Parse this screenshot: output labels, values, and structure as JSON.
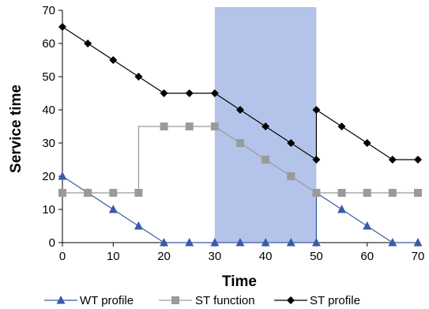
{
  "chart_data": {
    "type": "line",
    "title": "",
    "xlabel": "Time",
    "ylabel": "Service time",
    "xlim": [
      0,
      70
    ],
    "ylim": [
      0,
      70
    ],
    "xticks": [
      0,
      10,
      20,
      30,
      40,
      50,
      60,
      70
    ],
    "yticks": [
      0,
      10,
      20,
      30,
      40,
      50,
      60,
      70
    ],
    "grid": false,
    "legend_position": "bottom",
    "highlight_region": {
      "x_start": 30,
      "x_end": 50,
      "color": "#b4c3ea"
    },
    "series": [
      {
        "name": "WT profile",
        "marker": "triangle",
        "color": "#3a5ba8",
        "x": [
          0,
          5,
          10,
          15,
          20,
          25,
          30,
          35,
          40,
          45,
          50,
          50,
          55,
          60,
          65,
          70
        ],
        "y": [
          20,
          15,
          10,
          5,
          0,
          0,
          0,
          0,
          0,
          0,
          0,
          15,
          10,
          5,
          0,
          0
        ],
        "markers_at": [
          0,
          5,
          10,
          15,
          20,
          25,
          30,
          35,
          40,
          45,
          50,
          55,
          60,
          65,
          70
        ]
      },
      {
        "name": "ST function",
        "marker": "square",
        "color": "#9a9a9a",
        "x": [
          0,
          5,
          10,
          15,
          15,
          20,
          25,
          30,
          35,
          40,
          45,
          50,
          55,
          60,
          65,
          70
        ],
        "y": [
          15,
          15,
          15,
          15,
          35,
          35,
          35,
          35,
          30,
          25,
          20,
          15,
          15,
          15,
          15,
          15
        ],
        "markers_at": [
          0,
          5,
          10,
          15,
          20,
          25,
          30,
          35,
          40,
          45,
          50,
          55,
          60,
          65,
          70
        ]
      },
      {
        "name": "ST profile",
        "marker": "diamond",
        "color": "#000000",
        "x": [
          0,
          5,
          10,
          15,
          20,
          25,
          30,
          35,
          40,
          45,
          50,
          50,
          55,
          60,
          65,
          70
        ],
        "y": [
          65,
          60,
          55,
          50,
          45,
          45,
          45,
          40,
          35,
          30,
          25,
          40,
          35,
          30,
          25,
          25
        ],
        "markers_at": [
          0,
          5,
          10,
          15,
          20,
          25,
          30,
          35,
          40,
          45,
          50,
          50,
          55,
          60,
          65,
          70
        ]
      }
    ]
  }
}
